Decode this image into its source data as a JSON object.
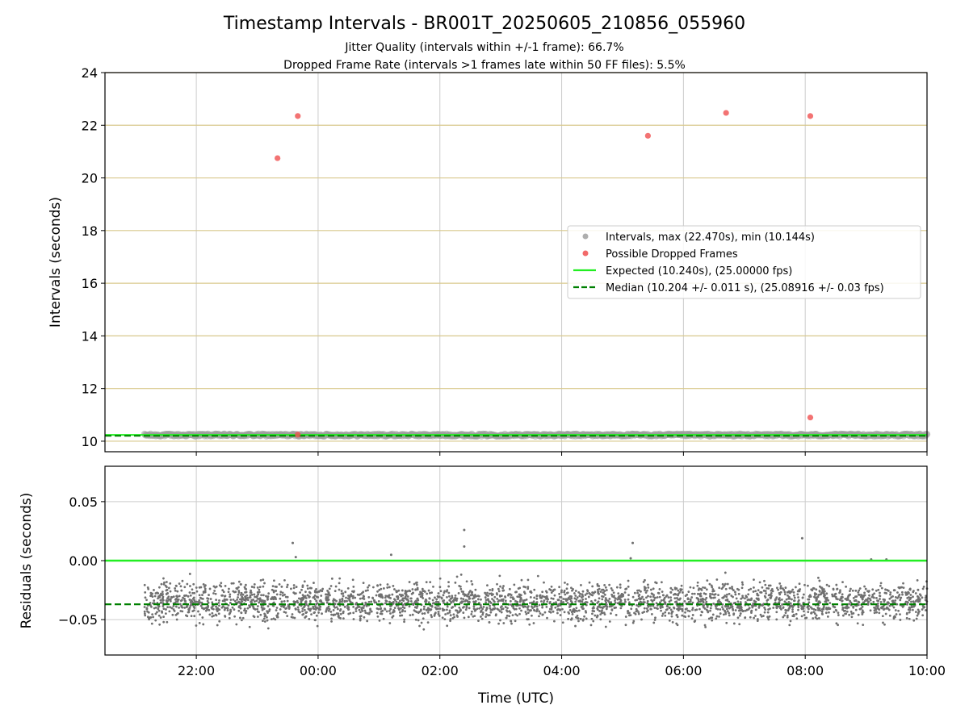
{
  "chart_data": {
    "type": "scatter",
    "title": "Timestamp Intervals - BR001T_20250605_210856_055960",
    "subtitle_lines": [
      "Jitter Quality (intervals within +/-1 frame): 66.7%",
      "Dropped Frame Rate (intervals >1 frames late within 50 FF files): 5.5%"
    ],
    "xlabel": "Time (UTC)",
    "x_range": [
      "2025-06-05T20:30:00",
      "2025-06-06T10:00:00"
    ],
    "x_ticks": [
      "22:00",
      "00:00",
      "02:00",
      "04:00",
      "06:00",
      "08:00",
      "10:00"
    ],
    "x_tick_times": [
      "2025-06-05T22:00:00",
      "2025-06-06T00:00:00",
      "2025-06-06T02:00:00",
      "2025-06-06T04:00:00",
      "2025-06-06T06:00:00",
      "2025-06-06T08:00:00",
      "2025-06-06T10:00:00"
    ],
    "data_span": [
      "2025-06-05T21:09:00",
      "2025-06-06T10:00:00"
    ],
    "top": {
      "ylabel": "Intervals (seconds)",
      "ylim": [
        9.6,
        24
      ],
      "y_ticks": [
        "10",
        "12",
        "14",
        "16",
        "18",
        "20",
        "22",
        "24"
      ],
      "y_tick_values": [
        10,
        12,
        14,
        16,
        18,
        20,
        22,
        24
      ],
      "grid": "horizontal gold lines, vertical gray lines",
      "interval_band": [
        10.144,
        10.32
      ],
      "dropped_frames": [
        {
          "time": "2025-06-05T23:20:00",
          "value": 20.75
        },
        {
          "time": "2025-06-05T23:40:00",
          "value": 22.35
        },
        {
          "time": "2025-06-05T23:40:00",
          "value": 10.25
        },
        {
          "time": "2025-06-06T05:25:00",
          "value": 21.6
        },
        {
          "time": "2025-06-06T06:42:00",
          "value": 22.47
        },
        {
          "time": "2025-06-06T08:05:00",
          "value": 22.35
        },
        {
          "time": "2025-06-06T08:05:00",
          "value": 10.9
        }
      ],
      "expected": 10.24,
      "median": 10.204
    },
    "bottom": {
      "ylabel": "Residuals (seconds)",
      "ylim": [
        -0.08,
        0.08
      ],
      "y_ticks": [
        "−0.05",
        "0.00",
        "0.05"
      ],
      "y_tick_values": [
        -0.05,
        0.0,
        0.05
      ],
      "expected_residual": 0.0,
      "median_residual": -0.037,
      "residual_center": -0.035,
      "residual_spread": 0.011,
      "residual_outliers": [
        {
          "time": "2025-06-05T23:35:00",
          "value": 0.015
        },
        {
          "time": "2025-06-05T23:38:00",
          "value": 0.003
        },
        {
          "time": "2025-06-06T01:12:00",
          "value": 0.005
        },
        {
          "time": "2025-06-06T02:24:00",
          "value": 0.026
        },
        {
          "time": "2025-06-06T02:24:00",
          "value": 0.012
        },
        {
          "time": "2025-06-06T05:10:00",
          "value": 0.015
        },
        {
          "time": "2025-06-06T05:08:00",
          "value": 0.002
        },
        {
          "time": "2025-06-06T07:57:00",
          "value": 0.019
        },
        {
          "time": "2025-06-06T09:05:00",
          "value": 0.001
        },
        {
          "time": "2025-06-06T09:20:00",
          "value": 0.001
        }
      ]
    },
    "legend": {
      "placement": "center-right",
      "entries": [
        {
          "label": "Intervals, max (22.470s), min (10.144s)",
          "kind": "marker",
          "color": "#a0a0a0"
        },
        {
          "label": "Possible Dropped Frames",
          "kind": "marker",
          "color": "#f05050"
        },
        {
          "label": "Expected (10.240s), (25.00000 fps)",
          "kind": "line",
          "color": "#22ee22"
        },
        {
          "label": "Median (10.204 +/- 0.011 s), (25.08916 +/- 0.03 fps)",
          "kind": "dashed",
          "color": "#008000"
        }
      ]
    },
    "colors": {
      "intervals": "#9c9c9c",
      "dropped": "#f05050",
      "residuals": "#707070",
      "expected": "#22ee22",
      "median": "#008000",
      "grid_h_top": "#d8c88c",
      "grid_v": "#cccccc"
    }
  }
}
